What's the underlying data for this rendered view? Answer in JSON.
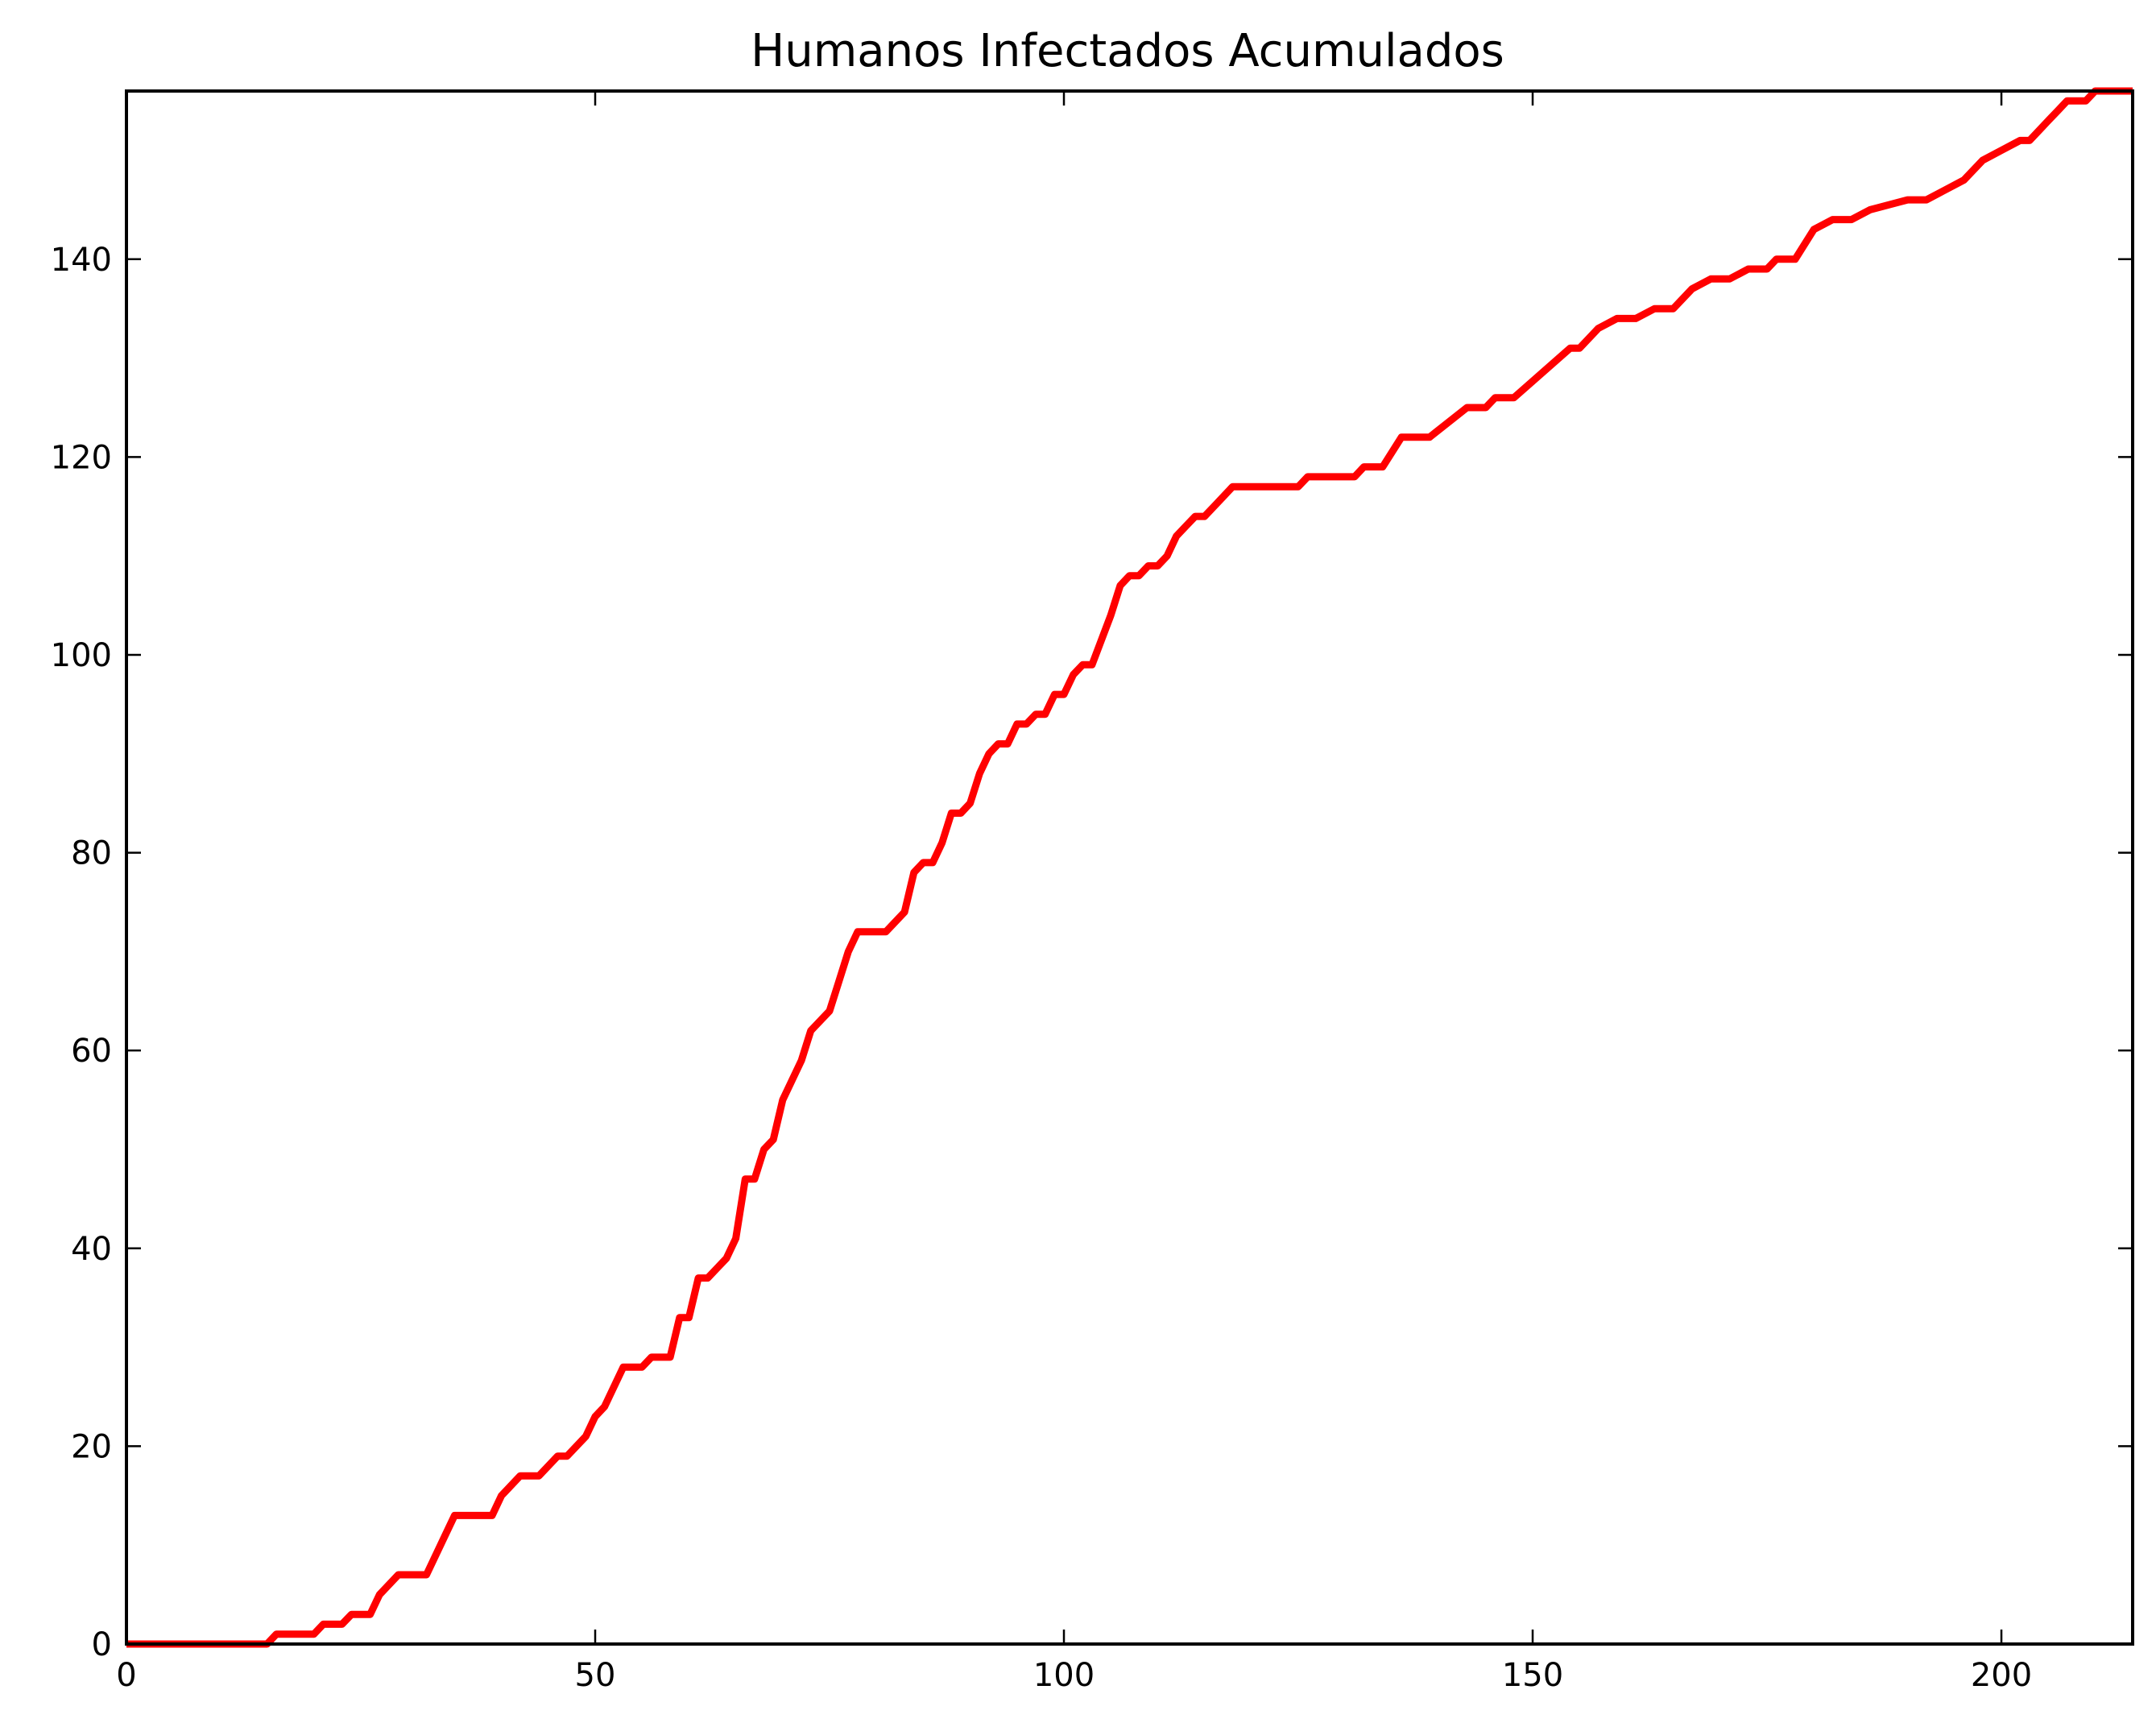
{
  "chart_data": {
    "type": "line",
    "title": "Humanos Infectados Acumulados",
    "xlabel": "",
    "ylabel": "",
    "xlim": [
      0,
      214
    ],
    "ylim": [
      0,
      157
    ],
    "xticks": [
      0,
      50,
      100,
      150,
      200
    ],
    "yticks": [
      0,
      20,
      40,
      60,
      80,
      100,
      120,
      140
    ],
    "grid": false,
    "legend": "none",
    "line_color": "#ff0000",
    "series": [
      {
        "x": [
          0,
          15,
          16,
          20,
          21,
          23,
          24,
          26,
          27,
          29,
          32,
          35,
          39,
          40,
          42,
          44,
          46,
          47,
          49,
          50,
          51,
          53,
          55,
          56,
          58,
          59,
          60,
          61,
          62,
          64,
          65,
          66,
          67,
          68,
          69,
          70,
          72,
          73,
          75,
          76,
          77,
          78,
          81,
          83,
          84,
          85,
          86,
          87,
          88,
          89,
          90,
          91,
          92,
          93,
          94,
          95,
          96,
          97,
          98,
          99,
          100,
          101,
          102,
          103,
          105,
          106,
          107,
          108,
          109,
          110,
          111,
          112,
          113,
          114,
          115,
          116,
          118,
          119,
          120,
          125,
          126,
          131,
          132,
          134,
          136,
          139,
          143,
          145,
          146,
          148,
          154,
          155,
          157,
          159,
          161,
          163,
          165,
          167,
          169,
          171,
          173,
          175,
          176,
          178,
          180,
          182,
          184,
          186,
          190,
          192,
          194,
          196,
          198,
          200,
          202,
          203,
          205,
          206,
          207,
          209,
          210,
          214
        ],
        "y": [
          0,
          0,
          1,
          1,
          2,
          2,
          3,
          3,
          5,
          7,
          7,
          13,
          13,
          15,
          17,
          17,
          19,
          19,
          21,
          23,
          24,
          28,
          28,
          29,
          29,
          33,
          33,
          37,
          37,
          39,
          41,
          47,
          47,
          50,
          51,
          55,
          59,
          62,
          64,
          67,
          70,
          72,
          72,
          74,
          78,
          79,
          79,
          81,
          84,
          84,
          85,
          88,
          90,
          91,
          91,
          93,
          93,
          94,
          94,
          96,
          96,
          98,
          99,
          99,
          104,
          107,
          108,
          108,
          109,
          109,
          110,
          112,
          113,
          114,
          114,
          115,
          117,
          117,
          117,
          117,
          118,
          118,
          119,
          119,
          122,
          122,
          125,
          125,
          126,
          126,
          131,
          131,
          133,
          134,
          134,
          135,
          135,
          137,
          138,
          138,
          139,
          139,
          140,
          140,
          143,
          144,
          144,
          145,
          146,
          146,
          147,
          148,
          150,
          151,
          152,
          152,
          154,
          155,
          156,
          156,
          157,
          157
        ]
      }
    ]
  }
}
